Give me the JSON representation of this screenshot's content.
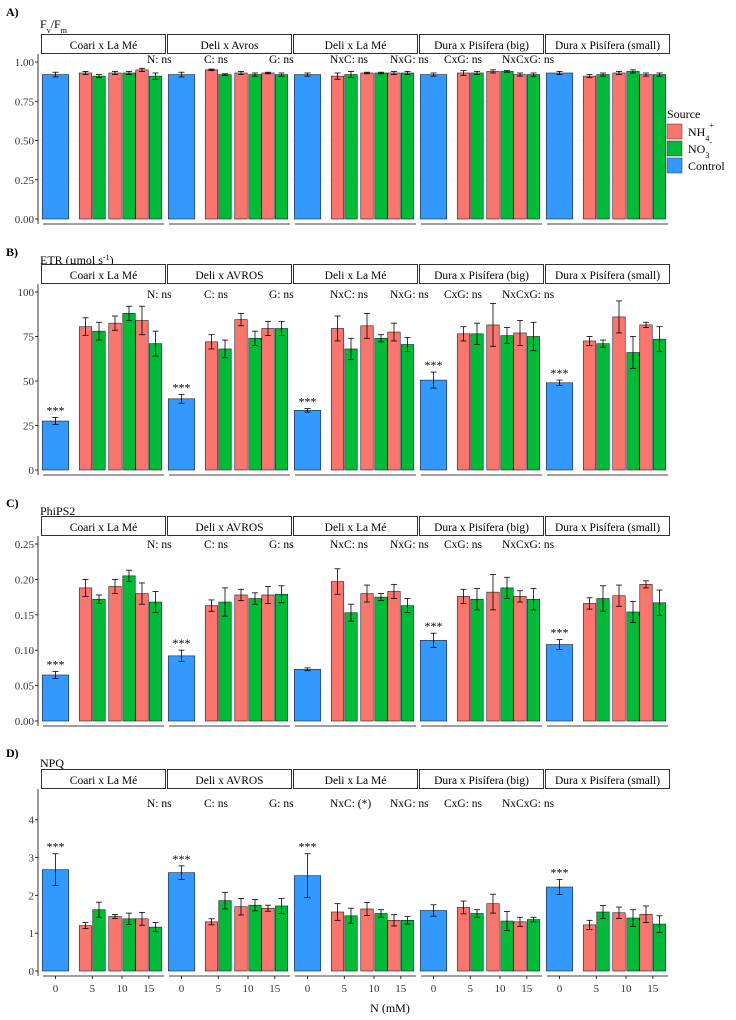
{
  "colors": {
    "nh4": "#F8766D",
    "no3": "#00BA38",
    "control": "#3399FF"
  },
  "legend": {
    "title": "Source",
    "items": [
      {
        "key": "nh4",
        "base": "NH",
        "sub": "4",
        "sup": "+"
      },
      {
        "key": "no3",
        "base": "NO",
        "sub": "3",
        "sup": "-"
      },
      {
        "key": "control",
        "label": "Control"
      }
    ]
  },
  "xaxis": {
    "label": "N (mM)",
    "tick_labels": [
      "0",
      "5",
      "10",
      "15"
    ]
  },
  "genotypes": [
    "Coari x La Mé",
    "Deli x Avros",
    "Deli x La Mé",
    "Dura x Pisífera (big)",
    "Dura x Pisífera (small)"
  ],
  "stats": [
    "N: ns",
    "C: ns",
    "G: ns",
    "NxC: ns",
    "NxG: ns",
    "CxG: ns",
    "NxCxG: ns"
  ],
  "chart_data": [
    {
      "type": "bar",
      "panel_label": "A)",
      "ylabel": {
        "base": "F",
        "sub1": "v",
        "mid": "/F",
        "sub2": "m"
      },
      "facets": [
        "Coari x La Mé",
        "Deli x Avros",
        "Deli x La Mé",
        "Dura x Pisífera (big)",
        "Dura x Pisífera (small)"
      ],
      "ylim": [
        0,
        1.0
      ],
      "yticks": [
        "0.00",
        "0.25",
        "0.50",
        "0.75",
        "1.00"
      ],
      "stats": [
        "N: ns",
        "C: ns",
        "G: ns",
        "NxC: ns",
        "NxG: ns",
        "CxG: ns",
        "NxCxG: ns"
      ],
      "significance": [],
      "bars": [
        [
          0.92,
          0.015,
          0.93,
          0.01,
          0.91,
          0.01,
          0.93,
          0.01,
          0.93,
          0.01,
          0.95,
          0.01,
          0.91,
          0.02
        ],
        [
          0.92,
          0.015,
          0.95,
          0.005,
          0.92,
          0.005,
          0.93,
          0.01,
          0.92,
          0.01,
          0.93,
          0.005,
          0.92,
          0.01
        ],
        [
          0.92,
          0.01,
          0.91,
          0.02,
          0.92,
          0.02,
          0.93,
          0.005,
          0.93,
          0.005,
          0.93,
          0.01,
          0.93,
          0.01
        ],
        [
          0.92,
          0.01,
          0.93,
          0.015,
          0.93,
          0.01,
          0.94,
          0.01,
          0.94,
          0.005,
          0.92,
          0.01,
          0.92,
          0.01
        ],
        [
          0.93,
          0.01,
          0.91,
          0.01,
          0.92,
          0.01,
          0.93,
          0.01,
          0.94,
          0.01,
          0.92,
          0.01,
          0.92,
          0.01
        ]
      ]
    },
    {
      "type": "bar",
      "panel_label": "B)",
      "ylabel": {
        "text": "ETR (µmol s",
        "sup": "-1",
        "close": ")"
      },
      "facets": [
        "Coari x La Mé",
        "Deli x AVROS",
        "Deli x La Mé",
        "Dura x Pisífera (big)",
        "Dura x Pisífera (small)"
      ],
      "ylim": [
        0,
        100
      ],
      "yticks": [
        "0",
        "25",
        "50",
        "75",
        "100"
      ],
      "stats": [
        "N: ns",
        "C: ns",
        "G: ns",
        "NxC: ns",
        "NxG: ns",
        "CxG: ns",
        "NxCxG: ns"
      ],
      "significance": [
        "***",
        "***",
        "***",
        "***",
        "***"
      ],
      "bars": [
        [
          27.5,
          2,
          80.5,
          5,
          78,
          5,
          82.5,
          4,
          88,
          4,
          84,
          8,
          71,
          7
        ],
        [
          40,
          2.5,
          72,
          4,
          68,
          5,
          84.5,
          3.5,
          74,
          4,
          79.5,
          4,
          79.5,
          4
        ],
        [
          33.5,
          1,
          79.5,
          7,
          68,
          6,
          81,
          7,
          74,
          2,
          77.5,
          5,
          70.5,
          4
        ],
        [
          50.5,
          4.5,
          76.5,
          4,
          76.5,
          6,
          81.5,
          12,
          75.5,
          4.5,
          77,
          7,
          75,
          8
        ],
        [
          49,
          1.5,
          72.5,
          2.5,
          71,
          2,
          86,
          9,
          66,
          9,
          81.5,
          1.5,
          73.5,
          7
        ]
      ]
    },
    {
      "type": "bar",
      "panel_label": "C)",
      "ylabel": {
        "text": "PhiPS2"
      },
      "facets": [
        "Coari x La Mé",
        "Deli x AVROS",
        "Deli x La Mé",
        "Dura x Pisífera (big)",
        "Dura x Pisífera (small)"
      ],
      "ylim": [
        0,
        0.25
      ],
      "yticks": [
        "0.00",
        "0.05",
        "0.10",
        "0.15",
        "0.20",
        "0.25"
      ],
      "stats": [
        "N: ns",
        "C: ns",
        "G: ns",
        "NxC: ns",
        "NxG: ns",
        "CxG: ns",
        "NxCxG: ns"
      ],
      "significance": [
        "***",
        "***",
        "",
        "***",
        "***"
      ],
      "bars": [
        [
          0.065,
          0.005,
          0.188,
          0.012,
          0.172,
          0.006,
          0.19,
          0.01,
          0.205,
          0.008,
          0.18,
          0.015,
          0.168,
          0.015
        ],
        [
          0.092,
          0.008,
          0.163,
          0.008,
          0.168,
          0.02,
          0.178,
          0.008,
          0.173,
          0.008,
          0.178,
          0.012,
          0.179,
          0.012
        ],
        [
          0.073,
          0.002,
          0.197,
          0.018,
          0.153,
          0.012,
          0.18,
          0.012,
          0.175,
          0.005,
          0.183,
          0.01,
          0.163,
          0.01
        ],
        [
          0.114,
          0.01,
          0.176,
          0.01,
          0.172,
          0.015,
          0.182,
          0.025,
          0.188,
          0.015,
          0.176,
          0.008,
          0.172,
          0.015
        ],
        [
          0.108,
          0.007,
          0.166,
          0.008,
          0.173,
          0.018,
          0.177,
          0.015,
          0.154,
          0.015,
          0.193,
          0.005,
          0.167,
          0.018
        ]
      ]
    },
    {
      "type": "bar",
      "panel_label": "D)",
      "ylabel": {
        "text": "NPQ"
      },
      "facets": [
        "Coari x La Mé",
        "Deli x AVROS",
        "Deli x La Mé",
        "Dura x Pisífera (big)",
        "Dura x Pisífera (small)"
      ],
      "ylim": [
        0,
        4.6
      ],
      "yticks": [
        "0",
        "1",
        "2",
        "3",
        "4"
      ],
      "stats": [
        "N: ns",
        "C: ns",
        "G: ns",
        "NxC: (*)",
        "NxG: ns",
        "CxG: ns",
        "NxCxG: ns"
      ],
      "significance": [
        "***",
        "***",
        "***",
        "",
        "***"
      ],
      "bars": [
        [
          2.68,
          0.42,
          1.2,
          0.08,
          1.62,
          0.2,
          1.44,
          0.05,
          1.38,
          0.15,
          1.38,
          0.17,
          1.16,
          0.12
        ],
        [
          2.6,
          0.18,
          1.3,
          0.08,
          1.86,
          0.22,
          1.7,
          0.22,
          1.74,
          0.15,
          1.66,
          0.08,
          1.72,
          0.2
        ],
        [
          2.52,
          0.58,
          1.56,
          0.22,
          1.46,
          0.2,
          1.64,
          0.17,
          1.52,
          0.1,
          1.34,
          0.15,
          1.34,
          0.1
        ],
        [
          1.6,
          0.15,
          1.68,
          0.17,
          1.52,
          0.1,
          1.78,
          0.25,
          1.32,
          0.25,
          1.3,
          0.12,
          1.36,
          0.06
        ],
        [
          2.22,
          0.2,
          1.22,
          0.12,
          1.56,
          0.17,
          1.54,
          0.15,
          1.4,
          0.22,
          1.5,
          0.22,
          1.24,
          0.22
        ]
      ]
    }
  ]
}
